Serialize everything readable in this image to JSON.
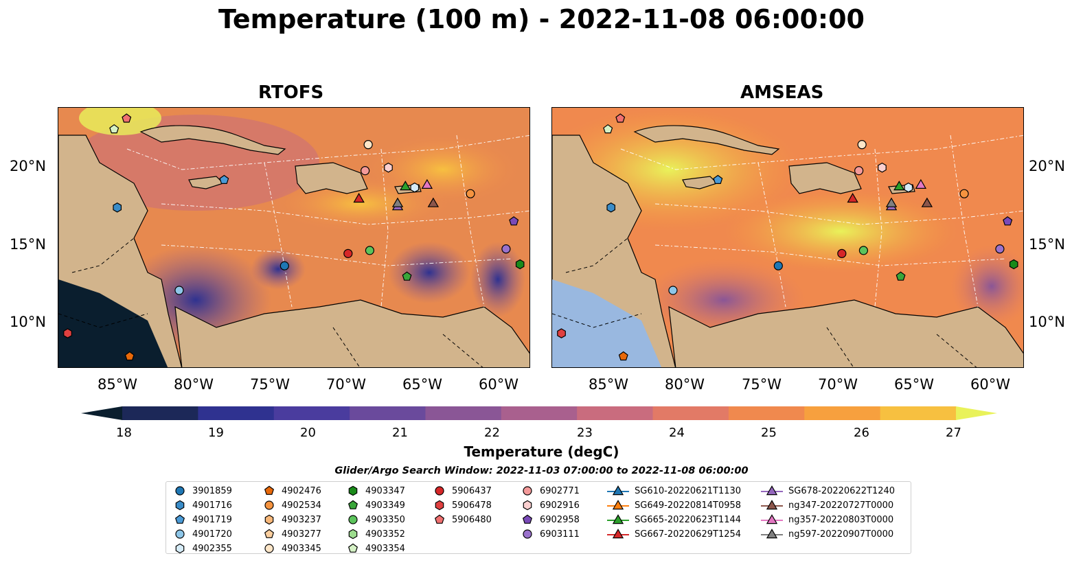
{
  "title": "Temperature (100 m) - 2022-11-08 06:00:00",
  "panels": [
    {
      "name": "RTOFS"
    },
    {
      "name": "AMSEAS"
    }
  ],
  "lat_labels": [
    "20°N",
    "15°N",
    "10°N"
  ],
  "lon_labels": [
    "85°W",
    "80°W",
    "75°W",
    "70°W",
    "65°W",
    "60°W"
  ],
  "map_extent": {
    "lon": [
      -89,
      -58.5
    ],
    "lat": [
      7,
      24
    ]
  },
  "colorbar": {
    "label": "Temperature (degC)",
    "ticks": [
      "18",
      "19",
      "20",
      "21",
      "22",
      "23",
      "24",
      "25",
      "26",
      "27"
    ],
    "range": [
      18,
      27
    ],
    "colors": [
      "#0a1e2e",
      "#1c2858",
      "#2f3290",
      "#4a3c9e",
      "#6a4a9c",
      "#8a5696",
      "#a9608e",
      "#c96c7e",
      "#e27a66",
      "#f0894e",
      "#f7a03e",
      "#f7c040",
      "#e9f25a"
    ]
  },
  "search_window": "Glider/Argo Search Window: 2022-11-03 07:00:00 to 2022-11-08 06:00:00",
  "legend": [
    {
      "label": "3901859",
      "color": "#1f77b4",
      "marker": "circle"
    },
    {
      "label": "4901716",
      "color": "#3a8cc8",
      "marker": "hexagon"
    },
    {
      "label": "4901719",
      "color": "#4a9ad6",
      "marker": "pentagon"
    },
    {
      "label": "4901720",
      "color": "#8ec6e8",
      "marker": "circle"
    },
    {
      "label": "4902355",
      "color": "#d6ecf8",
      "marker": "hexagon"
    },
    {
      "label": "4902476",
      "color": "#e8690a",
      "marker": "pentagon"
    },
    {
      "label": "4902534",
      "color": "#f5933f",
      "marker": "circle"
    },
    {
      "label": "4903237",
      "color": "#f8b87a",
      "marker": "hexagon"
    },
    {
      "label": "4903277",
      "color": "#fbcf9f",
      "marker": "pentagon"
    },
    {
      "label": "4903345",
      "color": "#fde6c8",
      "marker": "circle"
    },
    {
      "label": "4903347",
      "color": "#1a8a1a",
      "marker": "hexagon"
    },
    {
      "label": "4903349",
      "color": "#3aa63a",
      "marker": "pentagon"
    },
    {
      "label": "4903350",
      "color": "#5cc45c",
      "marker": "circle"
    },
    {
      "label": "4903352",
      "color": "#9ddc8e",
      "marker": "hexagon"
    },
    {
      "label": "4903354",
      "color": "#d6f2c6",
      "marker": "pentagon"
    },
    {
      "label": "5906437",
      "color": "#d62728",
      "marker": "circle"
    },
    {
      "label": "5906478",
      "color": "#e04040",
      "marker": "hexagon"
    },
    {
      "label": "5906480",
      "color": "#f07070",
      "marker": "pentagon"
    },
    {
      "label": "6902771",
      "color": "#f49a9a",
      "marker": "circle"
    },
    {
      "label": "6902916",
      "color": "#fbd0d0",
      "marker": "hexagon"
    },
    {
      "label": "6902958",
      "color": "#7a4ab8",
      "marker": "pentagon"
    },
    {
      "label": "6903111",
      "color": "#9a72cc",
      "marker": "circle"
    },
    {
      "label": "SG610-20220621T1130",
      "color": "#1f77b4",
      "marker": "triangle"
    },
    {
      "label": "SG649-20220814T0958",
      "color": "#ff7f0e",
      "marker": "triangle"
    },
    {
      "label": "SG665-20220623T1144",
      "color": "#2ca02c",
      "marker": "triangle"
    },
    {
      "label": "SG667-20220629T1254",
      "color": "#d62728",
      "marker": "triangle"
    },
    {
      "label": "SG678-20220622T1240",
      "color": "#9467bd",
      "marker": "triangle"
    },
    {
      "label": "ng347-20220727T0000",
      "color": "#8c564b",
      "marker": "triangle"
    },
    {
      "label": "ng357-20220803T0000",
      "color": "#e377c2",
      "marker": "triangle"
    },
    {
      "label": "ng597-20220907T0000",
      "color": "#7f7f7f",
      "marker": "triangle"
    }
  ],
  "platforms": [
    {
      "id": "4903345",
      "lon": -69.0,
      "lat": 21.6
    },
    {
      "id": "6902771",
      "lon": -69.2,
      "lat": 19.9
    },
    {
      "id": "6902916",
      "lon": -67.7,
      "lat": 20.1
    },
    {
      "id": "4902355",
      "lon": -66.0,
      "lat": 18.8
    },
    {
      "id": "SG665-20220623T1144",
      "lon": -66.6,
      "lat": 18.9
    },
    {
      "id": "ng357-20220803T0000",
      "lon": -65.2,
      "lat": 19.0
    },
    {
      "id": "SG667-20220629T1254",
      "lon": -69.6,
      "lat": 18.1
    },
    {
      "id": "SG678-20220622T1240",
      "lon": -67.1,
      "lat": 17.6
    },
    {
      "id": "ng597-20220907T0000",
      "lon": -67.1,
      "lat": 17.8
    },
    {
      "id": "ng347-20220727T0000",
      "lon": -64.8,
      "lat": 17.8
    },
    {
      "id": "4902534",
      "lon": -62.4,
      "lat": 18.4
    },
    {
      "id": "6902958",
      "lon": -59.6,
      "lat": 16.6
    },
    {
      "id": "6903111",
      "lon": -60.1,
      "lat": 14.8
    },
    {
      "id": "4903347",
      "lon": -59.2,
      "lat": 13.8
    },
    {
      "id": "4903349",
      "lon": -66.5,
      "lat": 13.0
    },
    {
      "id": "4903350",
      "lon": -68.9,
      "lat": 14.7
    },
    {
      "id": "5906437",
      "lon": -70.3,
      "lat": 14.5
    },
    {
      "id": "3901859",
      "lon": -74.4,
      "lat": 13.7
    },
    {
      "id": "4901720",
      "lon": -81.2,
      "lat": 12.1
    },
    {
      "id": "4901716",
      "lon": -85.2,
      "lat": 17.5
    },
    {
      "id": "4901719",
      "lon": -78.3,
      "lat": 19.3
    },
    {
      "id": "5906480",
      "lon": -84.6,
      "lat": 23.3
    },
    {
      "id": "4903354",
      "lon": -85.4,
      "lat": 22.6
    },
    {
      "id": "5906478",
      "lon": -88.4,
      "lat": 9.3
    },
    {
      "id": "4902476",
      "lon": -84.4,
      "lat": 7.8
    }
  ]
}
